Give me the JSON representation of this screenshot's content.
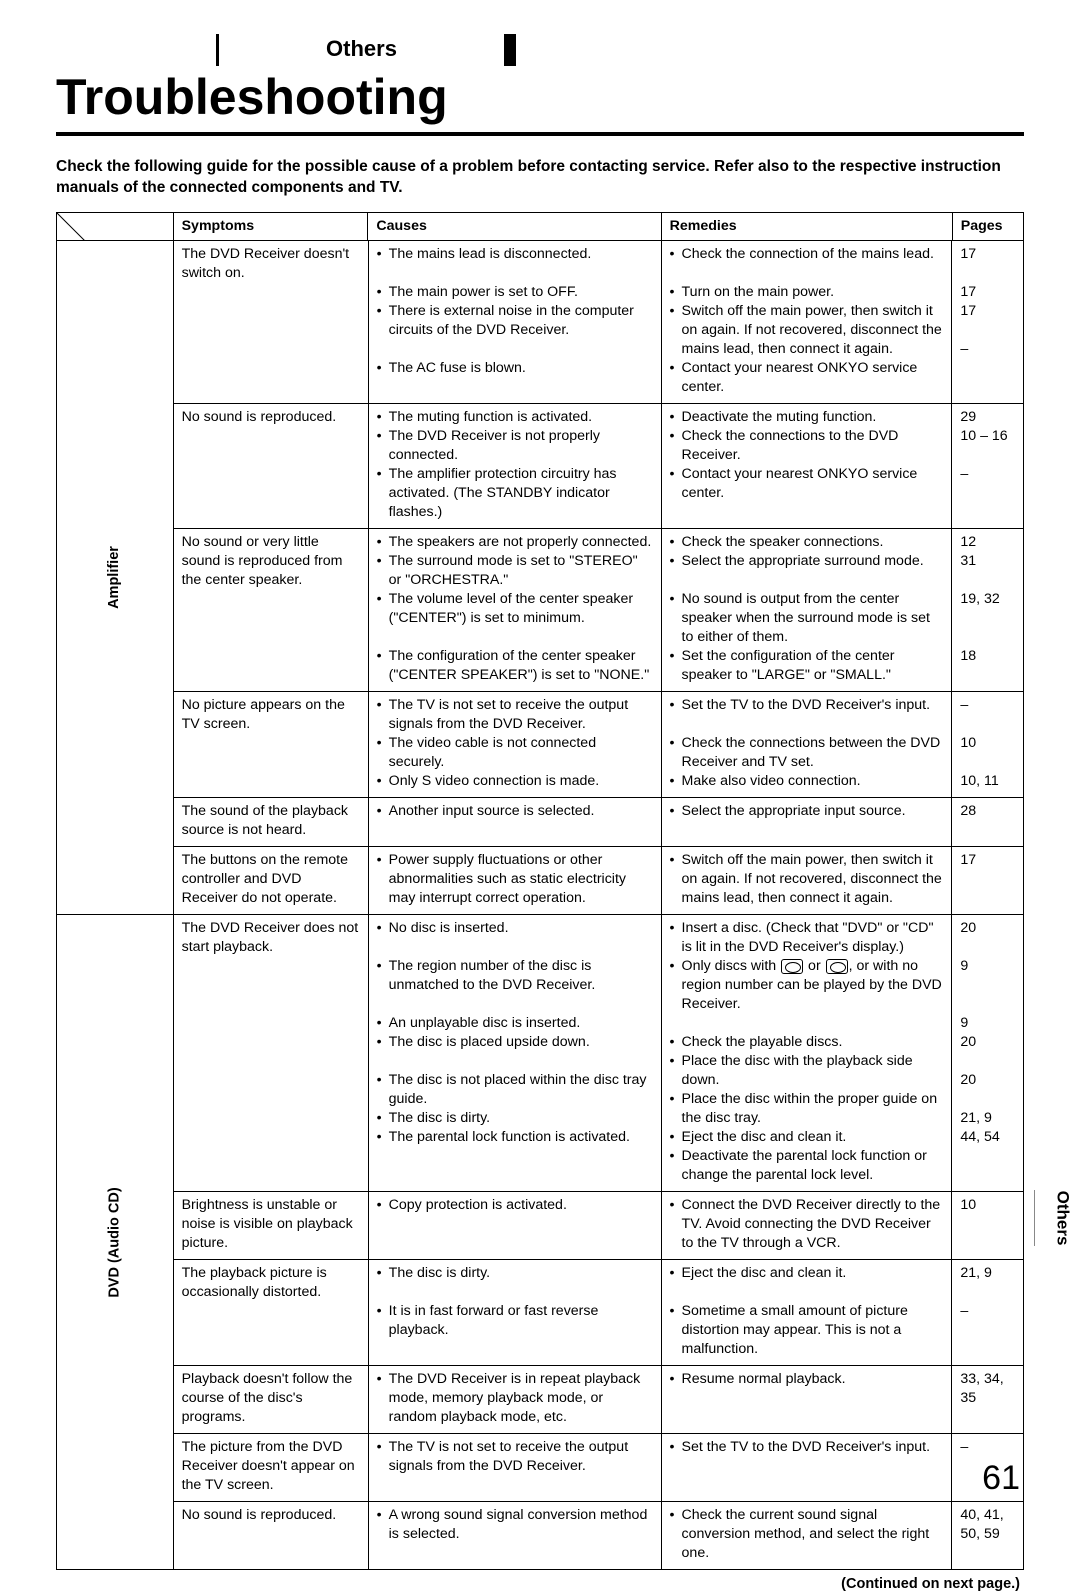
{
  "chapter": "Others",
  "title": "Troubleshooting",
  "lead": "Check the following guide for the possible cause of a problem before contacting service. Refer also to the respective instruction manuals of the connected components and TV.",
  "headers": {
    "symptoms": "Symptoms",
    "causes": "Causes",
    "remedies": "Remedies",
    "pages": "Pages"
  },
  "continued": "(Continued on next page.)",
  "side_tab": "Others",
  "page_number": "61",
  "categories": [
    {
      "label": "Amplifier",
      "rows": [
        {
          "symptom": "The DVD Receiver doesn't switch on.",
          "causes": [
            "The mains lead is disconnected.",
            "",
            "The main power is set to OFF.",
            "There is external noise in the computer circuits of the DVD Receiver.",
            "",
            "The AC fuse is blown."
          ],
          "remedies": [
            "Check the connection of the mains lead.",
            "",
            "Turn on the main power.",
            "Switch off the main power, then switch it on again. If not recovered, disconnect the mains lead, then connect it again.",
            "Contact your nearest ONKYO service center."
          ],
          "pages": [
            "17",
            "",
            "17",
            "17",
            "",
            "–"
          ]
        },
        {
          "symptom": "No sound is reproduced.",
          "causes": [
            "The muting function is activated.",
            "The DVD Receiver is not properly connected.",
            "The amplifier protection circuitry has activated. (The STANDBY indicator flashes.)"
          ],
          "remedies": [
            "Deactivate the muting function.",
            "Check the connections to the DVD Receiver.",
            "Contact your nearest ONKYO service center."
          ],
          "pages": [
            "29",
            "10 – 16",
            "",
            "–"
          ]
        },
        {
          "symptom": "No sound or very little sound is reproduced from the center speaker.",
          "causes": [
            "The speakers are not properly connected.",
            "The surround mode is set to \"STEREO\" or \"ORCHESTRA.\"",
            "The volume level of the center speaker (\"CENTER\") is set to minimum.",
            "",
            "The configuration of the center speaker (\"CENTER SPEAKER\") is set to \"NONE.\""
          ],
          "remedies": [
            "Check the speaker connections.",
            "Select the appropriate surround mode.",
            "",
            "No sound is output from the center speaker when the surround mode is set to either of them.",
            "Set the configuration of the center speaker to \"LARGE\" or \"SMALL.\""
          ],
          "pages": [
            "12",
            "31",
            "",
            "19, 32",
            "",
            "",
            "18"
          ]
        },
        {
          "symptom": "No picture appears on the TV screen.",
          "causes": [
            "The TV is not set to receive the output signals from the DVD Receiver.",
            "The video cable is not connected securely.",
            "Only S video connection is made."
          ],
          "remedies": [
            "Set the TV to the DVD Receiver's input.",
            "",
            "Check the connections between the DVD Receiver and TV set.",
            "Make also video connection."
          ],
          "pages": [
            "–",
            "",
            "10",
            "",
            "10, 11"
          ]
        },
        {
          "symptom": "The sound of the playback source is not heard.",
          "causes": [
            "Another input source is selected."
          ],
          "remedies": [
            "Select the appropriate input source."
          ],
          "pages": [
            "28"
          ]
        },
        {
          "symptom": "The buttons on the remote controller and DVD Receiver do not operate.",
          "causes": [
            "Power supply fluctuations or other abnormalities such as static electricity may interrupt correct operation."
          ],
          "remedies": [
            "Switch off the main power, then switch it on again. If not recovered, disconnect the mains lead, then connect it again."
          ],
          "pages": [
            "17"
          ]
        }
      ]
    },
    {
      "label": "DVD (Audio CD)",
      "rows": [
        {
          "symptom": "The DVD Receiver does not start playback.",
          "causes": [
            "No disc is inserted.",
            "",
            "The region number of the disc is unmatched to the DVD Receiver.",
            "",
            "An unplayable disc is inserted.",
            "The disc is placed upside down.",
            "",
            "The disc is not placed within the disc tray guide.",
            "The disc is dirty.",
            "The parental lock function is activated."
          ],
          "remedies": [
            "Insert a disc. (Check that \"DVD\" or \"CD\" is lit in the DVD Receiver's display.)",
            "__REGION__",
            "",
            "Check the playable discs.",
            "Place the disc with the playback side down.",
            "Place the disc within the proper guide on the disc tray.",
            "Eject the disc and clean it.",
            "Deactivate the parental lock function or change the parental lock level."
          ],
          "pages": [
            "20",
            "",
            "9",
            "",
            "",
            "9",
            "20",
            "",
            "20",
            "",
            "21, 9",
            "44, 54"
          ]
        },
        {
          "symptom": "Brightness is unstable or noise is visible on playback picture.",
          "causes": [
            "Copy protection is activated."
          ],
          "remedies": [
            "Connect the DVD Receiver directly to the TV. Avoid connecting the DVD Receiver to the TV through a VCR."
          ],
          "pages": [
            "10"
          ]
        },
        {
          "symptom": "The playback picture is occasionally distorted.",
          "causes": [
            "The disc is dirty.",
            "",
            "It is in fast forward or fast reverse playback."
          ],
          "remedies": [
            "Eject the disc and clean it.",
            "",
            "Sometime a small amount of picture distortion may appear. This is not a malfunction."
          ],
          "pages": [
            "21, 9",
            "",
            "–"
          ]
        },
        {
          "symptom": "Playback doesn't follow the course of the disc's programs.",
          "causes": [
            "The DVD Receiver is in repeat playback mode, memory playback mode, or random playback mode, etc."
          ],
          "remedies": [
            "Resume normal playback."
          ],
          "pages": [
            "33, 34, 35"
          ]
        },
        {
          "symptom": "The picture from the DVD Receiver doesn't appear on the TV screen.",
          "causes": [
            "The TV is not set to receive the output signals from the DVD Receiver."
          ],
          "remedies": [
            "Set the TV to the DVD Receiver's input."
          ],
          "pages": [
            "–"
          ]
        },
        {
          "symptom": "No sound is reproduced.",
          "causes": [
            "A wrong sound signal conversion method is selected."
          ],
          "remedies": [
            "Check the current sound signal conversion method, and select the right one."
          ],
          "pages": [
            "40, 41,",
            "50, 59"
          ]
        }
      ]
    }
  ]
}
